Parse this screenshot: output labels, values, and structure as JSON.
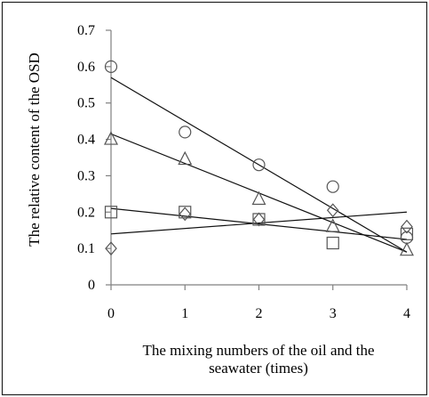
{
  "chart_data": {
    "type": "scatter",
    "xlabel_lines": [
      "The mixing numbers of the oil and the",
      "seawater (times)"
    ],
    "ylabel": "The relative content of the OSD",
    "x_ticks": [
      "0",
      "1",
      "2",
      "3",
      "4"
    ],
    "y_ticks": [
      "0",
      "0.1",
      "0.2",
      "0.3",
      "0.4",
      "0.5",
      "0.6",
      "0.7"
    ],
    "xlim": [
      0,
      4
    ],
    "ylim": [
      0,
      0.7
    ],
    "legend": "none",
    "grid": false,
    "series": [
      {
        "marker": "circle",
        "x": [
          0,
          1,
          2,
          3,
          4
        ],
        "y": [
          0.6,
          0.42,
          0.33,
          0.27,
          0.13
        ],
        "trend": [
          [
            0,
            0.57
          ],
          [
            4,
            0.09
          ]
        ]
      },
      {
        "marker": "triangle",
        "x": [
          0,
          1,
          2,
          3,
          4
        ],
        "y": [
          0.4,
          0.345,
          0.235,
          0.16,
          0.095
        ],
        "trend": [
          [
            0,
            0.415
          ],
          [
            4,
            0.09
          ]
        ]
      },
      {
        "marker": "square",
        "x": [
          0,
          1,
          2,
          3,
          4
        ],
        "y": [
          0.2,
          0.2,
          0.18,
          0.115,
          0.14
        ],
        "trend": [
          [
            0,
            0.21
          ],
          [
            4,
            0.125
          ]
        ]
      },
      {
        "marker": "diamond",
        "x": [
          0,
          1,
          2,
          3,
          4
        ],
        "y": [
          0.1,
          0.195,
          0.18,
          0.205,
          0.16
        ],
        "trend": [
          [
            0,
            0.14
          ],
          [
            4,
            0.2
          ]
        ]
      }
    ]
  }
}
